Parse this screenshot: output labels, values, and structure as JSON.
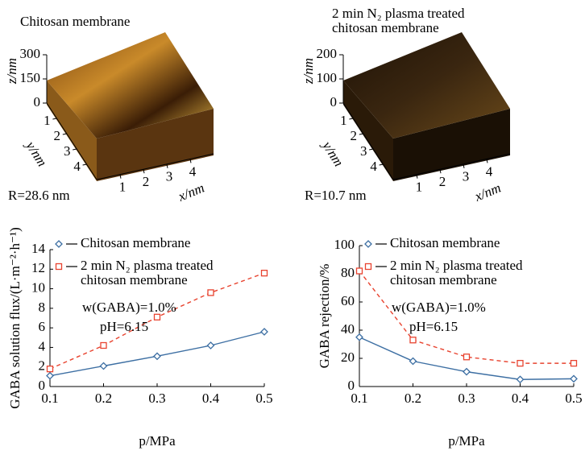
{
  "chart_data": [
    {
      "type": "surface",
      "title": "Chitosan membrane",
      "xlabel": "x/nm",
      "ylabel": "y/nm",
      "zlabel": "z/nm",
      "xlim": [
        0,
        5
      ],
      "ylim": [
        0,
        5
      ],
      "zlim": [
        0,
        300
      ],
      "xticks": [
        1,
        2,
        3,
        4
      ],
      "yticks": [
        1,
        2,
        3,
        4
      ],
      "zticks": [
        0,
        150,
        300
      ],
      "annotation": "R=28.6 nm"
    },
    {
      "type": "surface",
      "title": "2 min N₂ plasma treated chitosan membrane",
      "xlabel": "x/nm",
      "ylabel": "y/nm",
      "zlabel": "z/nm",
      "xlim": [
        0,
        5
      ],
      "ylim": [
        0,
        5
      ],
      "zlim": [
        0,
        200
      ],
      "xticks": [
        1,
        2,
        3,
        4
      ],
      "yticks": [
        1,
        2,
        3,
        4
      ],
      "zticks": [
        0,
        100,
        200
      ],
      "annotation": "R=10.7 nm"
    },
    {
      "type": "line",
      "xlabel": "p/MPa",
      "ylabel": "GABA solution flux/(L·m⁻²·h⁻¹)",
      "x": [
        0.1,
        0.2,
        0.3,
        0.4,
        0.5
      ],
      "xlim": [
        0.1,
        0.5
      ],
      "xticks": [
        0.1,
        0.2,
        0.3,
        0.4,
        0.5
      ],
      "ylim": [
        0,
        14
      ],
      "yticks": [
        0,
        2,
        4,
        6,
        8,
        10,
        12,
        14
      ],
      "annotations": [
        "w(GABA)=1.0%",
        "pH=6.15"
      ],
      "series": [
        {
          "name": "Chitosan membrane",
          "color": "#3d6fa3",
          "marker": "diamond",
          "dashed": false,
          "values": [
            1.1,
            2.1,
            3.1,
            4.2,
            5.6
          ]
        },
        {
          "name": "2 min N₂ plasma treated chitosan membrane",
          "color": "#e8432f",
          "marker": "square",
          "dashed": true,
          "values": [
            1.8,
            4.2,
            7.1,
            9.6,
            11.6
          ]
        }
      ]
    },
    {
      "type": "line",
      "xlabel": "p/MPa",
      "ylabel": "GABA rejection/%",
      "x": [
        0.1,
        0.2,
        0.3,
        0.4,
        0.5
      ],
      "xlim": [
        0.1,
        0.5
      ],
      "xticks": [
        0.1,
        0.2,
        0.3,
        0.4,
        0.5
      ],
      "ylim": [
        0,
        100
      ],
      "yticks": [
        0,
        20,
        40,
        60,
        80,
        100
      ],
      "annotations": [
        "w(GABA)=1.0%",
        "pH=6.15"
      ],
      "series": [
        {
          "name": "Chitosan membrane",
          "color": "#3d6fa3",
          "marker": "diamond",
          "dashed": false,
          "values": [
            35,
            18,
            10.5,
            5,
            5.5
          ]
        },
        {
          "name": "2 min N₂ plasma treated chitosan membrane",
          "color": "#e8432f",
          "marker": "square",
          "dashed": true,
          "values": [
            82,
            33,
            21,
            16.5,
            16.5
          ]
        }
      ]
    }
  ]
}
